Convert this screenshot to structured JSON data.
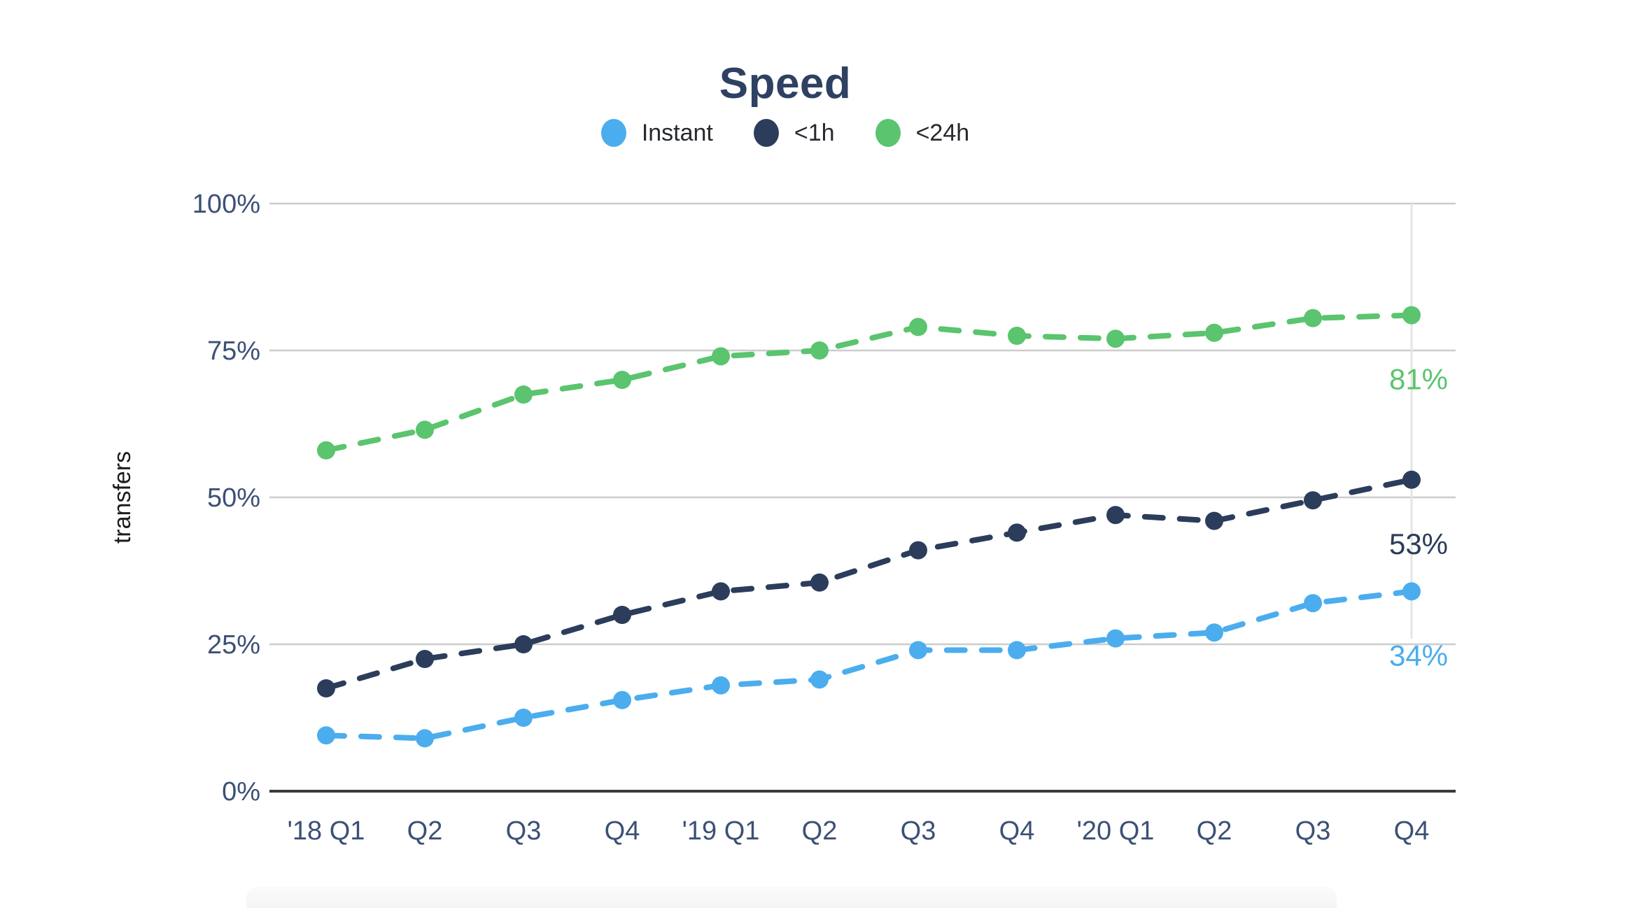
{
  "title": "Speed",
  "colors": {
    "title": "#2e4162",
    "tick_label": "#3c5076",
    "legend_text": "#26292e",
    "ylabel_text": "#1c1c1c",
    "gridline": "#cccccc",
    "axis_line": "#3b3b3b",
    "guide_line": "#e4e4e4",
    "instant": "#4badee",
    "lt1h": "#2b3d5b",
    "lt24h": "#5ac46e"
  },
  "legend": [
    {
      "label": "Instant",
      "color": "#4badee"
    },
    {
      "label": "<1h",
      "color": "#2b3d5b"
    },
    {
      "label": "<24h",
      "color": "#5ac46e"
    }
  ],
  "chart_data": {
    "type": "line",
    "title": "Speed",
    "ylabel": "transfers",
    "xlabel": "",
    "ylim": [
      0,
      100
    ],
    "yticks": [
      {
        "value": 0,
        "label": "0%"
      },
      {
        "value": 25,
        "label": "25%"
      },
      {
        "value": 50,
        "label": "50%"
      },
      {
        "value": 75,
        "label": "75%"
      },
      {
        "value": 100,
        "label": "100%"
      }
    ],
    "grid": "horizontal",
    "legend_position": "top-center",
    "line_style": "dashed-with-markers",
    "categories": [
      "'18 Q1",
      "Q2",
      "Q3",
      "Q4",
      "'19 Q1",
      "Q2",
      "Q3",
      "Q4",
      "'20 Q1",
      "Q2",
      "Q3",
      "Q4"
    ],
    "series": [
      {
        "name": "Instant",
        "color": "#4badee",
        "values": [
          9.5,
          9,
          12.5,
          15.5,
          18,
          19,
          24,
          24,
          26,
          27,
          32,
          34
        ],
        "end_label": "34%"
      },
      {
        "name": "<1h",
        "color": "#2b3d5b",
        "values": [
          17.5,
          22.5,
          25,
          30,
          34,
          35.5,
          41,
          44,
          47,
          46,
          49.5,
          53
        ],
        "end_label": "53%"
      },
      {
        "name": "<24h",
        "color": "#5ac46e",
        "values": [
          58,
          61.5,
          67.5,
          70,
          74,
          75,
          79,
          77.5,
          77,
          78,
          80.5,
          81
        ],
        "end_label": "81%"
      }
    ]
  }
}
